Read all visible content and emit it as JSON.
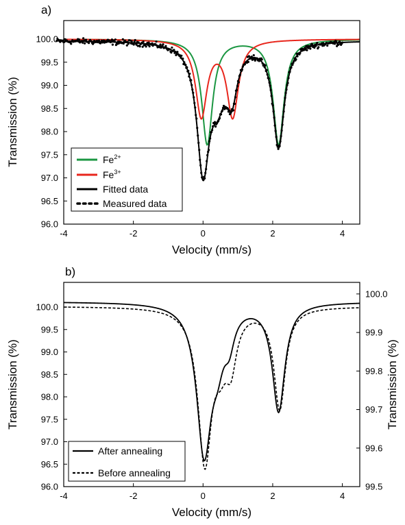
{
  "chart_data": [
    {
      "type": "line",
      "panel_label": "a)",
      "xlabel": "Velocity (mm/s)",
      "ylabel": "Transmission (%)",
      "xlim": [
        -4,
        4.5
      ],
      "ylim": [
        96.0,
        100.4
      ],
      "xticks": [
        "-4",
        "-2",
        "0",
        "2",
        "4"
      ],
      "yticks": [
        "96.0",
        "96.5",
        "97.0",
        "97.5",
        "98.0",
        "98.5",
        "99.0",
        "99.5",
        "100.0"
      ],
      "grid": false,
      "legend_position": "bottom-left",
      "legend": [
        {
          "label": "Fe",
          "sup": "2+",
          "color": "#1a9641",
          "style": "solid"
        },
        {
          "label": "Fe",
          "sup": "3+",
          "color": "#e8261c",
          "style": "solid"
        },
        {
          "label": "Fitted data",
          "color": "#000000",
          "style": "solid"
        },
        {
          "label": "Measured data",
          "color": "#000000",
          "style": "dotted"
        }
      ],
      "components": {
        "fe2_doublet": {
          "baseline": 100.0,
          "lines": [
            {
              "center": 0.12,
              "depth": 2.27,
              "hwhm": 0.19
            },
            {
              "center": 2.17,
              "depth": 2.27,
              "hwhm": 0.19
            }
          ]
        },
        "fe3_doublet": {
          "baseline": 100.0,
          "lines": [
            {
              "center": -0.05,
              "depth": 1.65,
              "hwhm": 0.2
            },
            {
              "center": 0.85,
              "depth": 1.65,
              "hwhm": 0.2
            }
          ]
        },
        "fitted": {
          "baseline": 99.97,
          "lines": [
            {
              "center": 0.0,
              "depth": 2.7,
              "hwhm": 0.22
            },
            {
              "center": 0.42,
              "depth": 0.92,
              "hwhm": 0.25
            },
            {
              "center": 0.82,
              "depth": 1.06,
              "hwhm": 0.2
            },
            {
              "center": 2.17,
              "depth": 2.26,
              "hwhm": 0.2
            }
          ]
        }
      }
    },
    {
      "type": "line",
      "panel_label": "b)",
      "xlabel": "Velocity (mm/s)",
      "ylabel": "Transmission (%)",
      "ylabel_right": "Transmission (%)",
      "xlim": [
        -4,
        4.5
      ],
      "ylim": [
        96.0,
        100.55
      ],
      "ylim_right": [
        99.5,
        100.03
      ],
      "xticks": [
        "-4",
        "-2",
        "0",
        "2",
        "4"
      ],
      "yticks": [
        "96.0",
        "96.5",
        "97.0",
        "97.5",
        "98.0",
        "98.5",
        "99.0",
        "99.5",
        "100.0"
      ],
      "yticks_right": [
        "99.5",
        "99.6",
        "99.7",
        "99.8",
        "99.9",
        "100.0"
      ],
      "grid": false,
      "legend_position": "bottom-left",
      "legend": [
        {
          "label": "After annealing",
          "color": "#000000",
          "style": "solid"
        },
        {
          "label": "Before annealing",
          "color": "#000000",
          "style": "dotted"
        }
      ],
      "series": [
        {
          "name": "After annealing",
          "axis": "left",
          "baseline": 100.12,
          "lines": [
            {
              "center": 0.03,
              "depth": 3.28,
              "hwhm": 0.26
            },
            {
              "center": 0.42,
              "depth": 0.82,
              "hwhm": 0.22
            },
            {
              "center": 0.75,
              "depth": 0.63,
              "hwhm": 0.18
            },
            {
              "center": 2.17,
              "depth": 2.4,
              "hwhm": 0.22
            }
          ]
        },
        {
          "name": "Before annealing",
          "axis": "right",
          "baseline": 99.968,
          "lines": [
            {
              "center": 0.05,
              "depth": 0.395,
              "hwhm": 0.24
            },
            {
              "center": 0.5,
              "depth": 0.09,
              "hwhm": 0.22
            },
            {
              "center": 0.8,
              "depth": 0.125,
              "hwhm": 0.2
            },
            {
              "center": 2.2,
              "depth": 0.262,
              "hwhm": 0.2
            }
          ]
        }
      ]
    }
  ]
}
